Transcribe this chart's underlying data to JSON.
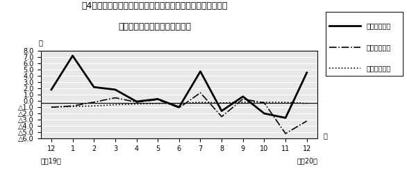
{
  "title_line1": "笥4図　　賃金、労働時間、常用雇用指数対前年同月比の推移",
  "title_line2": "（規横５人以上　調査産業計）",
  "xlabel_right": "月",
  "ylabel": "％",
  "x_labels": [
    "12",
    "1",
    "2",
    "3",
    "4",
    "5",
    "6",
    "7",
    "8",
    "9",
    "10",
    "11",
    "12"
  ],
  "x_bottom_left": "平成19年",
  "x_bottom_right": "平成20年",
  "ylim": [
    -6.0,
    8.0
  ],
  "yticks": [
    -6.0,
    -5.0,
    -4.0,
    -3.0,
    -2.0,
    -1.0,
    0.0,
    1.0,
    2.0,
    3.0,
    4.0,
    5.0,
    6.0,
    7.0,
    8.0
  ],
  "series1_name": "現金給与総額",
  "series1_style": "solid",
  "series1_color": "#000000",
  "series1_linewidth": 2.0,
  "series1_data": [
    1.8,
    7.2,
    2.2,
    1.8,
    -0.1,
    0.3,
    -1.0,
    4.7,
    -1.6,
    0.7,
    -2.0,
    -2.7,
    4.5
  ],
  "series2_name": "総実労働時間",
  "series2_style": "dashdot",
  "series2_color": "#000000",
  "series2_linewidth": 1.2,
  "series2_data": [
    -1.0,
    -0.8,
    -0.2,
    0.5,
    -0.2,
    0.2,
    -1.1,
    1.3,
    -2.5,
    0.3,
    -0.3,
    -5.2,
    -3.2
  ],
  "series3_name": "常用雇用指数",
  "series3_style": "dotted",
  "series3_color": "#000000",
  "series3_linewidth": 1.2,
  "series3_data": [
    -1.0,
    -0.9,
    -0.8,
    -0.6,
    -0.5,
    -0.4,
    -0.4,
    -0.2,
    -0.3,
    -0.2,
    -0.2,
    -0.2,
    -0.4
  ],
  "hline_y": -0.3,
  "hline_color": "#000000",
  "bg_color": "#ffffff",
  "plot_bg_color": "#e8e8e8",
  "legend_fontsize": 7,
  "title_fontsize": 9,
  "tick_fontsize": 7
}
